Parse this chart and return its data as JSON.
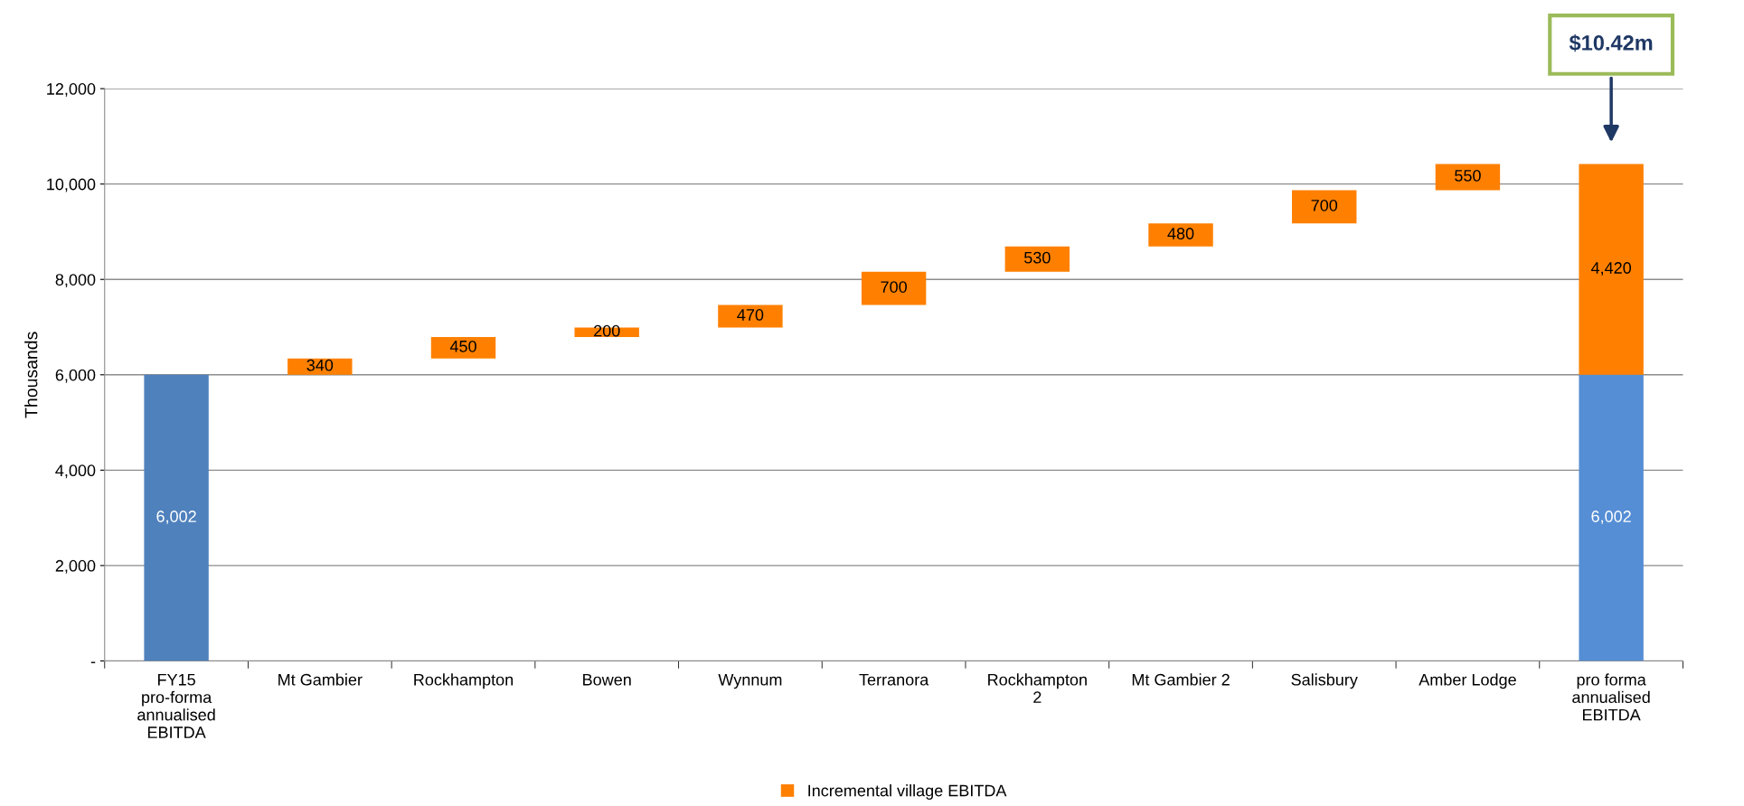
{
  "chart_data": {
    "type": "bar",
    "ylabel": "Thousands",
    "categories": [
      "FY15 pro-forma annualised EBITDA",
      "Mt Gambier",
      "Rockhampton",
      "Bowen",
      "Wynnum",
      "Terranora",
      "Rockhampton 2",
      "Mt Gambier 2",
      "Salisbury",
      "Amber Lodge",
      "pro forma annualised EBITDA"
    ],
    "series": [
      {
        "colors": [
          "#4f81bd",
          null,
          null,
          null,
          null,
          null,
          null,
          null,
          null,
          null,
          "#558ed5"
        ],
        "values": [
          6002,
          null,
          null,
          null,
          null,
          null,
          null,
          null,
          null,
          null,
          6002
        ],
        "value_labels": [
          "6,002",
          null,
          null,
          null,
          null,
          null,
          null,
          null,
          null,
          null,
          "6,002"
        ]
      },
      {
        "name": "Incremental village EBITDA",
        "color": "#ff8000",
        "values": [
          null,
          340,
          450,
          200,
          470,
          700,
          530,
          480,
          700,
          550,
          4420
        ],
        "base": [
          null,
          6002,
          6342,
          6792,
          6992,
          7462,
          8162,
          8692,
          9172,
          9872,
          6002
        ],
        "value_labels": [
          null,
          "340",
          "450",
          "200",
          "470",
          "700",
          "530",
          "480",
          "700",
          "550",
          "4,420"
        ]
      }
    ],
    "ylim": [
      0,
      12000
    ],
    "yticks": [
      {
        "value": 0,
        "label": "-"
      },
      {
        "value": 2000,
        "label": "2,000"
      },
      {
        "value": 4000,
        "label": "4,000"
      },
      {
        "value": 6000,
        "label": "6,000"
      },
      {
        "value": 8000,
        "label": "8,000"
      },
      {
        "value": 10000,
        "label": "10,000"
      },
      {
        "value": 12000,
        "label": "12,000"
      }
    ],
    "annotations": [
      "$10.42m"
    ],
    "grid": "y",
    "legend": "bottom"
  }
}
